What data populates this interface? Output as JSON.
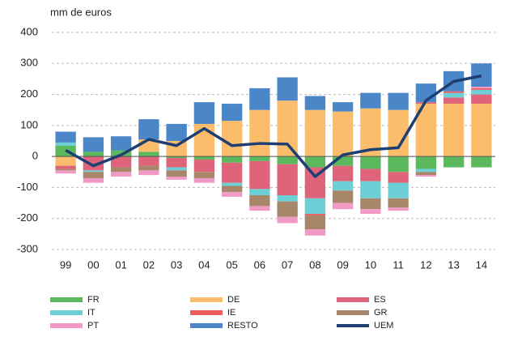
{
  "chart_data": {
    "type": "bar",
    "stacked": true,
    "y_label": "mm de euros",
    "categories": [
      "99",
      "00",
      "01",
      "02",
      "03",
      "04",
      "05",
      "06",
      "07",
      "08",
      "09",
      "10",
      "11",
      "12",
      "13",
      "14"
    ],
    "ylim": [
      -300,
      400
    ],
    "yticks": [
      -300,
      -200,
      -100,
      0,
      100,
      200,
      300,
      400
    ],
    "grid": true,
    "series": [
      {
        "name": "FR",
        "color": "#5cb85c",
        "values": [
          35,
          15,
          20,
          15,
          -5,
          -10,
          -20,
          -15,
          -25,
          -35,
          -30,
          -40,
          -50,
          -40,
          -35,
          -35
        ]
      },
      {
        "name": "DE",
        "color": "#fbbd6c",
        "values": [
          -30,
          0,
          0,
          40,
          50,
          105,
          115,
          150,
          180,
          150,
          145,
          155,
          150,
          170,
          170,
          170
        ]
      },
      {
        "name": "ES",
        "color": "#df6479",
        "values": [
          -10,
          -45,
          -35,
          -30,
          -30,
          -40,
          -65,
          -90,
          -100,
          -100,
          -50,
          -40,
          -35,
          5,
          20,
          30
        ]
      },
      {
        "name": "IT",
        "color": "#6dcfd6",
        "values": [
          10,
          -5,
          0,
          0,
          -10,
          0,
          -10,
          -20,
          -20,
          -50,
          -30,
          -55,
          -50,
          -10,
          15,
          15
        ]
      },
      {
        "name": "IE",
        "color": "#ef5c5c",
        "values": [
          0,
          0,
          0,
          0,
          0,
          0,
          0,
          0,
          0,
          -5,
          0,
          0,
          0,
          0,
          5,
          5
        ]
      },
      {
        "name": "GR",
        "color": "#a8866a",
        "values": [
          -5,
          -20,
          -15,
          -15,
          -20,
          -20,
          -20,
          -35,
          -50,
          -45,
          -40,
          -35,
          -30,
          -10,
          0,
          0
        ]
      },
      {
        "name": "PT",
        "color": "#f19ac6",
        "values": [
          -10,
          -15,
          -15,
          -15,
          -10,
          -15,
          -15,
          -15,
          -20,
          -20,
          -20,
          -15,
          -10,
          -5,
          0,
          5
        ]
      },
      {
        "name": "RESTO",
        "color": "#4a86c8",
        "values": [
          35,
          47,
          45,
          65,
          55,
          70,
          55,
          70,
          75,
          45,
          30,
          50,
          55,
          60,
          65,
          75
        ]
      },
      {
        "name": "UEM",
        "color": "#1f3f73",
        "type": "line",
        "values": [
          20,
          -30,
          5,
          55,
          35,
          90,
          35,
          42,
          40,
          -65,
          5,
          22,
          28,
          180,
          242,
          260
        ]
      }
    ]
  }
}
